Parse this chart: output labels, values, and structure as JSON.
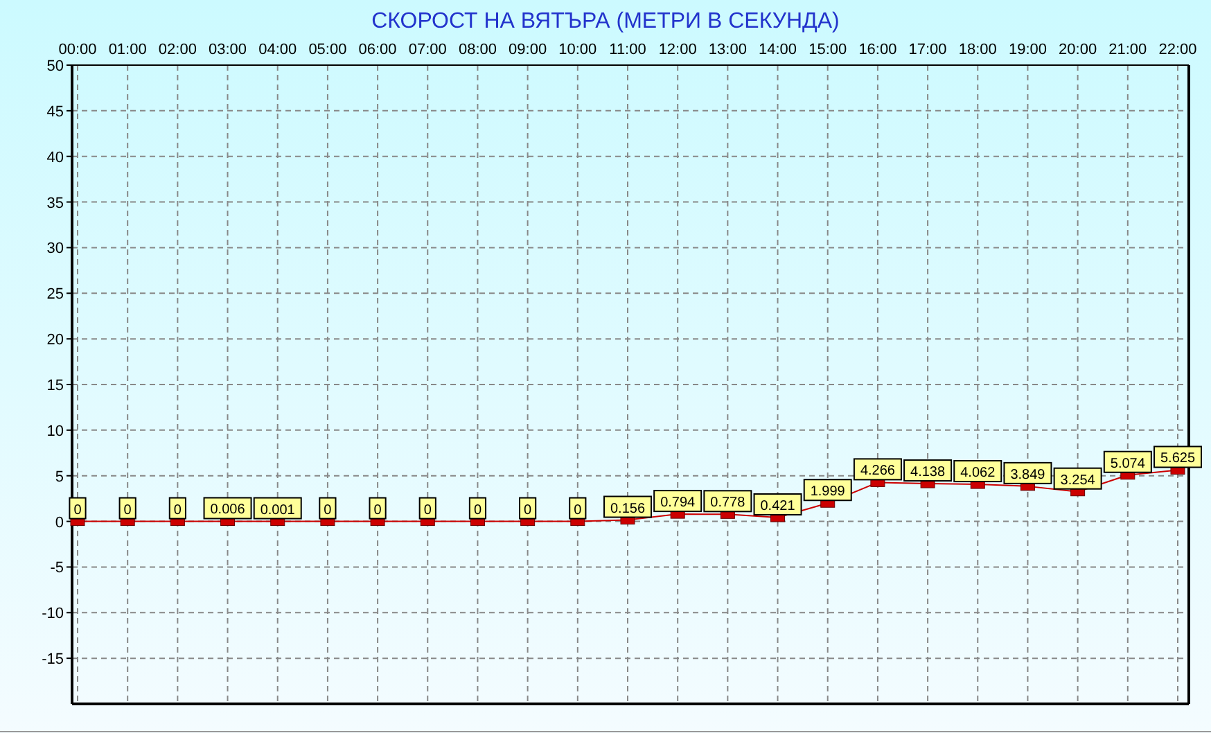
{
  "chart_data": {
    "type": "line",
    "title": "СКОРОСТ НА ВЯТЪРА (МЕТРИ В СЕКУНДА)",
    "categories": [
      "00:00",
      "01:00",
      "02:00",
      "03:00",
      "04:00",
      "05:00",
      "06:00",
      "07:00",
      "08:00",
      "09:00",
      "10:00",
      "11:00",
      "12:00",
      "13:00",
      "14:00",
      "15:00",
      "16:00",
      "17:00",
      "18:00",
      "19:00",
      "20:00",
      "21:00",
      "22:00"
    ],
    "series": [
      {
        "color": "#cc0000",
        "values": [
          0,
          0,
          0,
          0.006,
          0.001,
          0,
          0,
          0,
          0,
          0,
          0,
          0.156,
          0.794,
          0.778,
          0.421,
          1.999,
          4.266,
          4.138,
          4.062,
          3.849,
          3.254,
          5.074,
          5.625
        ]
      }
    ],
    "ylim": [
      -20,
      50
    ],
    "yticks": [
      -15,
      -10,
      -5,
      0,
      5,
      10,
      15,
      20,
      25,
      30,
      35,
      40,
      45,
      50
    ],
    "grid": true,
    "marker": "square",
    "line_style": "solid",
    "data_labels": true
  }
}
